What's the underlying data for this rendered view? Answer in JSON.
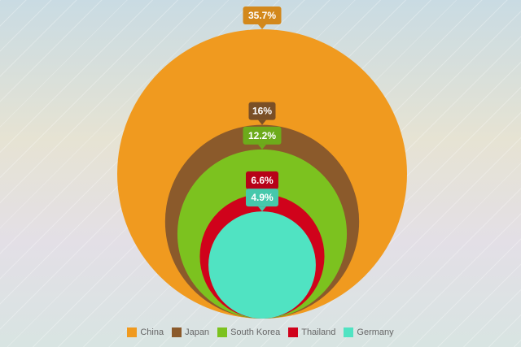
{
  "chart_data": {
    "type": "bubble",
    "title": "",
    "series": [
      {
        "name": "China",
        "value": 35.7,
        "label": "35.7%",
        "color": "#f09a1f"
      },
      {
        "name": "Japan",
        "value": 16,
        "label": "16%",
        "color": "#8b5a2b"
      },
      {
        "name": "South Korea",
        "value": 12.2,
        "label": "12.2%",
        "color": "#7cc21f"
      },
      {
        "name": "Thailand",
        "value": 6.6,
        "label": "6.6%",
        "color": "#d0021b"
      },
      {
        "name": "Germany",
        "value": 4.9,
        "label": "4.9%",
        "color": "#50e3c2"
      }
    ],
    "legend": {
      "position": "bottom"
    }
  }
}
